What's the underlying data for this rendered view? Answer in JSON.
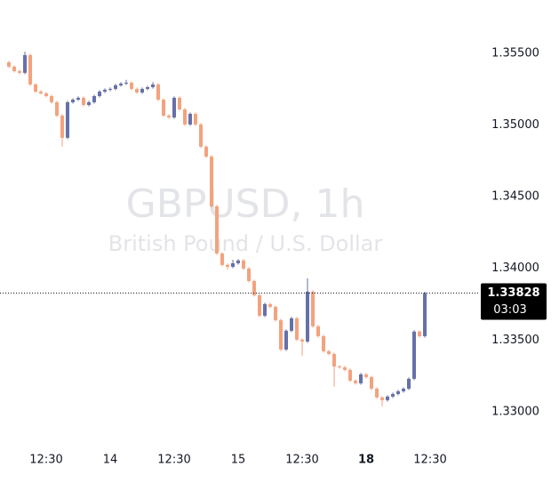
{
  "chart_data": {
    "type": "candlestick",
    "title": "GBPUSD, 1h",
    "subtitle": "British Pound / U.S. Dollar",
    "open": [
      1.35438,
      1.35407,
      1.35376,
      1.35364,
      1.35488,
      1.35283,
      1.35233,
      1.35221,
      1.35202,
      1.35159,
      1.35066,
      1.34911,
      1.35159,
      1.35177,
      1.3519,
      1.3514,
      1.35159,
      1.35202,
      1.35233,
      1.35246,
      1.35252,
      1.35277,
      1.35289,
      1.35295,
      1.35252,
      1.35227,
      1.35252,
      1.35264,
      1.35283,
      1.35177,
      1.35066,
      1.35053,
      1.3519,
      1.35109,
      1.35004,
      1.35078,
      1.35004,
      1.34849,
      1.3478,
      1.34433,
      1.34104,
      1.34024,
      1.34011,
      1.34036,
      1.34055,
      1.33999,
      1.33912,
      1.33813,
      1.3367,
      1.33751,
      1.33732,
      1.33639,
      1.33434,
      1.33565,
      1.33652,
      1.33503,
      1.3349,
      1.33838,
      1.33596,
      1.33527,
      1.33422,
      1.33403,
      1.33316,
      1.3331,
      1.33292,
      1.33217,
      1.33199,
      1.33261,
      1.33242,
      1.33161,
      1.331,
      1.33081,
      1.33106,
      1.33124,
      1.33143,
      1.33161,
      1.3323,
      1.33559,
      1.33527
    ],
    "high": [
      1.35448,
      1.35417,
      1.35386,
      1.35512,
      1.35498,
      1.35293,
      1.35243,
      1.35231,
      1.35212,
      1.35169,
      1.35076,
      1.35169,
      1.35187,
      1.352,
      1.352,
      1.35169,
      1.35212,
      1.35243,
      1.35256,
      1.35262,
      1.35287,
      1.35299,
      1.35315,
      1.35305,
      1.35262,
      1.35262,
      1.35274,
      1.353,
      1.35293,
      1.35187,
      1.35076,
      1.352,
      1.352,
      1.35119,
      1.35088,
      1.35088,
      1.35014,
      1.34859,
      1.3479,
      1.34443,
      1.34114,
      1.34034,
      1.3406,
      1.34065,
      1.34065,
      1.34009,
      1.33922,
      1.33823,
      1.33761,
      1.33761,
      1.33742,
      1.33649,
      1.33575,
      1.33662,
      1.33662,
      1.33513,
      1.33931,
      1.33848,
      1.33606,
      1.33537,
      1.33432,
      1.33413,
      1.33326,
      1.3332,
      1.33302,
      1.33227,
      1.33271,
      1.33271,
      1.33252,
      1.33171,
      1.3311,
      1.33116,
      1.33134,
      1.33153,
      1.33171,
      1.3324,
      1.33569,
      1.33569,
      1.33838
    ],
    "low": [
      1.35397,
      1.35366,
      1.35354,
      1.35354,
      1.35273,
      1.35223,
      1.35211,
      1.35192,
      1.35149,
      1.35056,
      1.34849,
      1.34901,
      1.35149,
      1.35167,
      1.3513,
      1.3513,
      1.35149,
      1.35192,
      1.35223,
      1.35236,
      1.35242,
      1.35267,
      1.35279,
      1.35242,
      1.35217,
      1.35217,
      1.35242,
      1.35254,
      1.35167,
      1.35056,
      1.35043,
      1.35043,
      1.35099,
      1.34994,
      1.34994,
      1.34994,
      1.34839,
      1.3477,
      1.34423,
      1.34094,
      1.34014,
      1.3399,
      1.34001,
      1.34026,
      1.33989,
      1.33902,
      1.33803,
      1.3366,
      1.3366,
      1.33722,
      1.33629,
      1.33424,
      1.33424,
      1.33555,
      1.33493,
      1.33391,
      1.3348,
      1.33586,
      1.33517,
      1.33412,
      1.33393,
      1.33174,
      1.333,
      1.33282,
      1.33207,
      1.33189,
      1.33189,
      1.33232,
      1.33151,
      1.3309,
      1.33037,
      1.33071,
      1.33096,
      1.33114,
      1.33133,
      1.33151,
      1.3322,
      1.33517,
      1.33517
    ],
    "close": [
      1.35407,
      1.35376,
      1.35364,
      1.35488,
      1.35283,
      1.35233,
      1.35221,
      1.35202,
      1.35159,
      1.35066,
      1.34911,
      1.35159,
      1.35177,
      1.3519,
      1.3514,
      1.35159,
      1.35202,
      1.35233,
      1.35246,
      1.35252,
      1.35277,
      1.35289,
      1.35295,
      1.35252,
      1.35227,
      1.35252,
      1.35264,
      1.35283,
      1.35177,
      1.35066,
      1.35053,
      1.3519,
      1.35109,
      1.35004,
      1.35078,
      1.35004,
      1.34849,
      1.3478,
      1.34433,
      1.34104,
      1.34024,
      1.34011,
      1.34036,
      1.34055,
      1.33999,
      1.33912,
      1.33813,
      1.3367,
      1.33751,
      1.33732,
      1.33639,
      1.33434,
      1.33565,
      1.33652,
      1.33503,
      1.3349,
      1.33838,
      1.33596,
      1.33527,
      1.33422,
      1.33403,
      1.33316,
      1.3331,
      1.33292,
      1.33217,
      1.33199,
      1.33261,
      1.33242,
      1.33161,
      1.331,
      1.33081,
      1.33106,
      1.33124,
      1.33143,
      1.33161,
      1.3323,
      1.33559,
      1.33527,
      1.33828
    ],
    "up_color": "#6670a8",
    "down_color": "#f4a27e",
    "ylim": [
      1.3277,
      1.3581
    ],
    "yticks": [
      {
        "value": 1.33,
        "label": "1.33000"
      },
      {
        "value": 1.335,
        "label": "1.33500"
      },
      {
        "value": 1.34,
        "label": "1.34000"
      },
      {
        "value": 1.345,
        "label": "1.34500"
      },
      {
        "value": 1.35,
        "label": "1.35000"
      },
      {
        "value": 1.355,
        "label": "1.35500"
      }
    ],
    "xlim": [
      -1.67,
      88.33
    ],
    "xticks": [
      {
        "value": 7,
        "label": "12:30"
      },
      {
        "value": 19,
        "label": "14"
      },
      {
        "value": 31,
        "label": "12:30"
      },
      {
        "value": 43,
        "label": "15"
      },
      {
        "value": 55,
        "label": "12:30"
      },
      {
        "value": 67,
        "label": "18"
      },
      {
        "value": 79,
        "label": "12:30"
      }
    ],
    "countdown": "03:03"
  }
}
